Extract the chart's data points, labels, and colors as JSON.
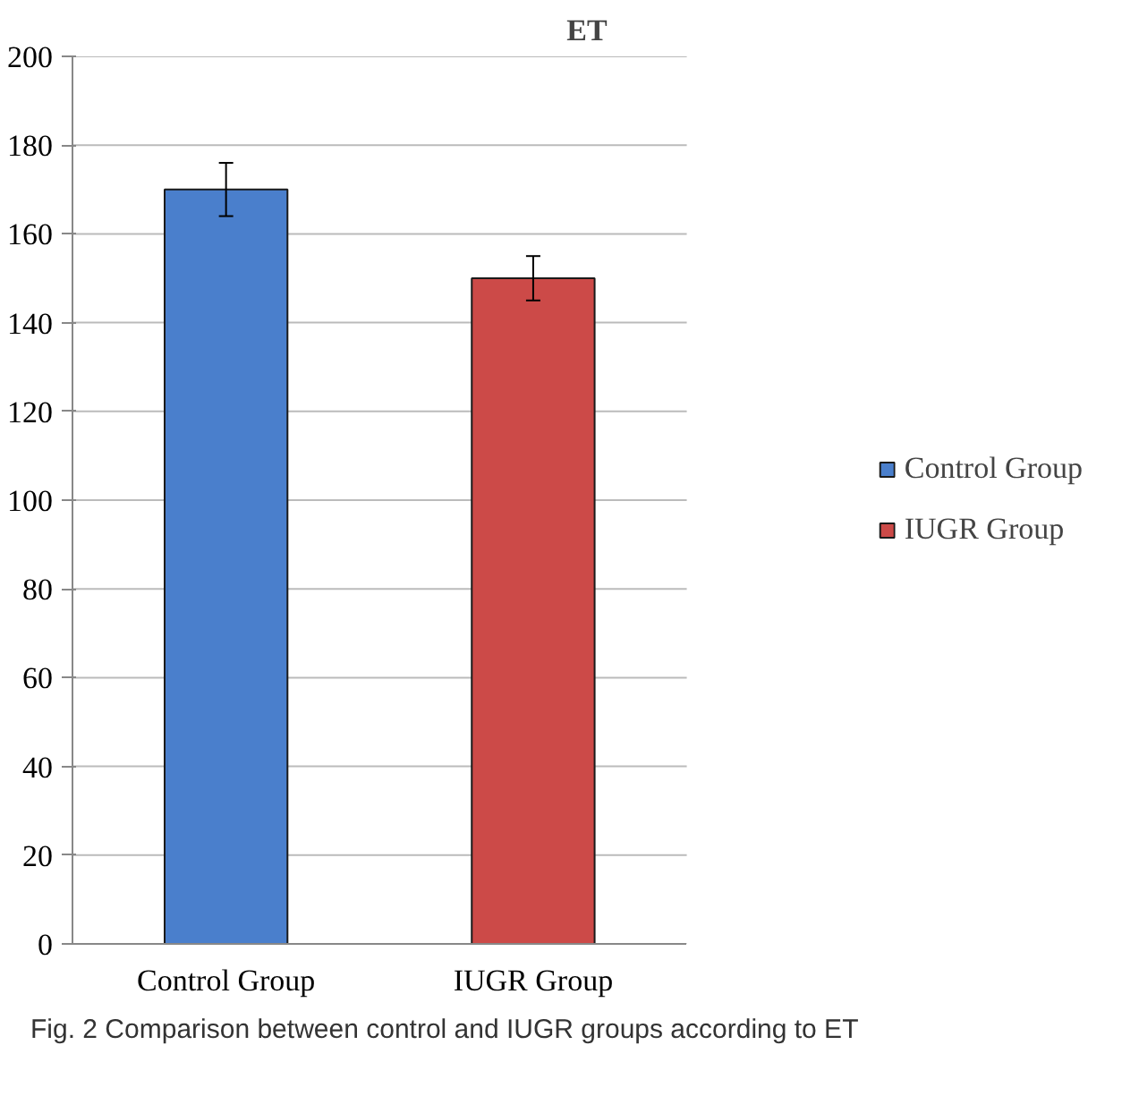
{
  "chart_data": {
    "type": "bar",
    "title": "ET",
    "categories": [
      "Control Group",
      "IUGR Group"
    ],
    "series": [
      {
        "name": "Control Group",
        "color": "#4a7fcc",
        "values": [
          170,
          null
        ],
        "errors": [
          6,
          null
        ]
      },
      {
        "name": "IUGR Group",
        "color": "#cc4a48",
        "values": [
          null,
          150
        ],
        "errors": [
          null,
          5
        ]
      }
    ],
    "ylim": [
      0,
      200
    ],
    "yticks": [
      0,
      20,
      40,
      60,
      80,
      100,
      120,
      140,
      160,
      180,
      200
    ],
    "grid": "y",
    "legend": "right",
    "annotations": [
      "Fig. 2  Comparison between control and IUGR groups according to ET"
    ]
  }
}
